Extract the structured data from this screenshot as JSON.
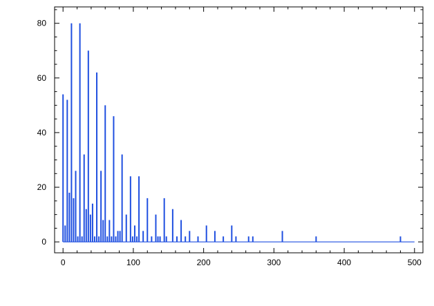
{
  "chart_data": {
    "type": "bar",
    "title": "",
    "xlabel": "",
    "ylabel": "",
    "xlim": [
      -12,
      512
    ],
    "ylim": [
      -4,
      86
    ],
    "xticks": [
      0,
      100,
      200,
      300,
      400,
      500
    ],
    "yticks": [
      0,
      20,
      40,
      60,
      80
    ],
    "x_minor_step": 20,
    "y_minor_step": 5,
    "grid": false,
    "bar_color": "#1f4fe0",
    "baseline_end": 500,
    "x": [
      0,
      3,
      6,
      9,
      12,
      15,
      18,
      21,
      24,
      27,
      30,
      33,
      36,
      39,
      42,
      45,
      48,
      51,
      54,
      57,
      60,
      63,
      66,
      69,
      72,
      75,
      78,
      81,
      84,
      90,
      96,
      99,
      102,
      105,
      108,
      114,
      120,
      126,
      132,
      135,
      138,
      144,
      147,
      156,
      162,
      168,
      174,
      180,
      192,
      204,
      216,
      228,
      240,
      246,
      264,
      270,
      312,
      360,
      480
    ],
    "values": [
      54,
      6,
      52,
      18,
      80,
      16,
      26,
      2,
      80,
      2,
      32,
      12,
      70,
      10,
      14,
      2,
      62,
      2,
      26,
      8,
      50,
      2,
      8,
      2,
      46,
      2,
      4,
      4,
      32,
      10,
      24,
      2,
      6,
      2,
      24,
      4,
      16,
      2,
      10,
      2,
      2,
      16,
      2,
      12,
      2,
      8,
      2,
      4,
      2,
      6,
      4,
      2,
      6,
      2,
      2,
      2,
      4,
      2,
      2
    ]
  }
}
